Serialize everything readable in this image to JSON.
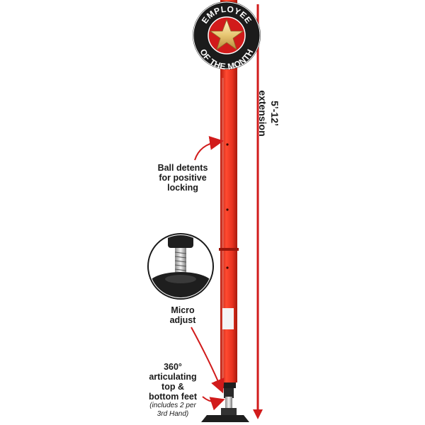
{
  "badge": {
    "top_text": "EMPLOYEE",
    "bottom_text": "OF THE MONTH",
    "colors": {
      "ring": "#1b1b1b",
      "center": "#d11b1b",
      "star": "#e8c874"
    }
  },
  "labels": {
    "extension": [
      "5’-12’",
      "extension"
    ],
    "ball_detents": [
      "Ball detents",
      "for positive",
      "locking"
    ],
    "micro_adjust": [
      "Micro",
      "adjust"
    ],
    "feet": [
      "360°",
      "articulating",
      "top &",
      "bottom feet"
    ],
    "feet_note": [
      "(includes 2 per",
      "3rd Hand)"
    ]
  },
  "colors": {
    "pole": "#e8321f",
    "arrow": "#d11b1b",
    "foot": "#1e1e1e"
  },
  "icons": [
    "star-icon",
    "arrow-icon",
    "detail-magnifier"
  ]
}
